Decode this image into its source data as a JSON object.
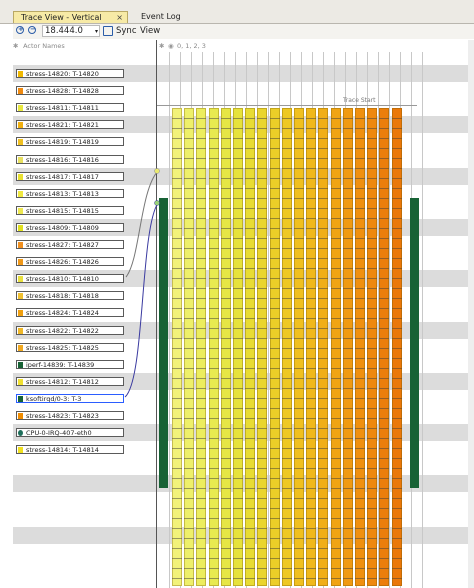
{
  "tabs": [
    {
      "label": "Trace View - Vertical",
      "close": "×"
    },
    {
      "label": "Event Log"
    }
  ],
  "toolbar": {
    "timestamp": "18.444.0",
    "sync_label": "Sync",
    "view_label": "View"
  },
  "left_panel": {
    "header": "Actor Names",
    "actors": [
      {
        "label": "stress-14820: T-14820",
        "color": "#f0b800",
        "marker": "square"
      },
      {
        "label": "stress-14828: T-14828",
        "color": "#f08a10",
        "marker": "square"
      },
      {
        "label": "stress-14811: T-14811",
        "color": "#e8e840",
        "marker": "square"
      },
      {
        "label": "stress-14821: T-14821",
        "color": "#f0b010",
        "marker": "square"
      },
      {
        "label": "stress-14819: T-14819",
        "color": "#f0c020",
        "marker": "square"
      },
      {
        "label": "stress-14816: T-14816",
        "color": "#e8e060",
        "marker": "square"
      },
      {
        "label": "stress-14817: T-14817",
        "color": "#e8e030",
        "marker": "square"
      },
      {
        "label": "stress-14813: T-14813",
        "color": "#f0e840",
        "marker": "square"
      },
      {
        "label": "stress-14815: T-14815",
        "color": "#eee850",
        "marker": "square"
      },
      {
        "label": "stress-14809: T-14809",
        "color": "#e0e020",
        "marker": "square"
      },
      {
        "label": "stress-14827: T-14827",
        "color": "#f09020",
        "marker": "square"
      },
      {
        "label": "stress-14826: T-14826",
        "color": "#f09818",
        "marker": "square"
      },
      {
        "label": "stress-14810: T-14810",
        "color": "#e8e040",
        "marker": "square"
      },
      {
        "label": "stress-14818: T-14818",
        "color": "#f0c030",
        "marker": "square"
      },
      {
        "label": "stress-14824: T-14824",
        "color": "#f0a010",
        "marker": "square"
      },
      {
        "label": "stress-14822: T-14822",
        "color": "#f0b828",
        "marker": "square"
      },
      {
        "label": "stress-14825: T-14825",
        "color": "#f0a820",
        "marker": "square"
      },
      {
        "label": "iperf-14839: T-14839",
        "color": "#176235",
        "marker": "square"
      },
      {
        "label": "stress-14812: T-14812",
        "color": "#f0e030",
        "marker": "square"
      },
      {
        "label": "ksoftirqd/0-3: T-3",
        "color": "#176235",
        "marker": "square",
        "selected": true
      },
      {
        "label": "stress-14823: T-14823",
        "color": "#f08c00",
        "marker": "square"
      },
      {
        "label": "CPU-0-IRQ-407-eth0",
        "color": "#1e6e5a",
        "marker": "dot"
      },
      {
        "label": "stress-14814: T-14814",
        "color": "#f0e020",
        "marker": "square"
      }
    ]
  },
  "right_panel": {
    "header": "0, 1, 2, 3",
    "trace_start_label": "Trace Start",
    "lane_color": "#176235",
    "bars": [
      {
        "color": "#f2f27a"
      },
      {
        "color": "#eef06a"
      },
      {
        "color": "#eced5e"
      },
      {
        "color": "#e8ea50"
      },
      {
        "color": "#e6e645"
      },
      {
        "color": "#e6e23c"
      },
      {
        "color": "#e8dc34"
      },
      {
        "color": "#ead52e"
      },
      {
        "color": "#ecce28"
      },
      {
        "color": "#eec824"
      },
      {
        "color": "#f0c020"
      },
      {
        "color": "#f0b81c"
      },
      {
        "color": "#f0ae18"
      },
      {
        "color": "#f0a414"
      },
      {
        "color": "#f09a12"
      },
      {
        "color": "#f09010"
      },
      {
        "color": "#ee880e"
      },
      {
        "color": "#ec7e0c"
      },
      {
        "color": "#ea780a"
      }
    ]
  }
}
